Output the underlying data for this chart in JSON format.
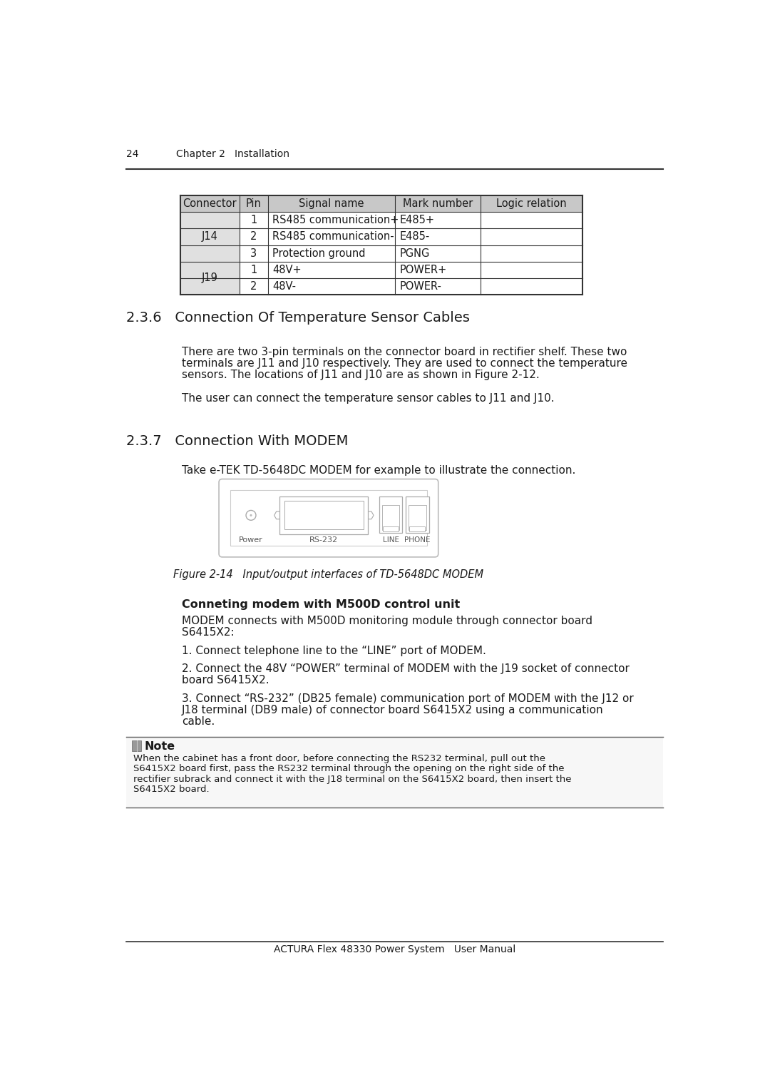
{
  "page_number": "24",
  "chapter_header": "Chapter 2   Installation",
  "footer_text": "ACTURA Flex 48330 Power System   User Manual",
  "table": {
    "headers": [
      "Connector",
      "Pin",
      "Signal name",
      "Mark number",
      "Logic relation"
    ],
    "rows": [
      [
        "",
        "1",
        "RS485 communication+",
        "E485+",
        ""
      ],
      [
        "J14",
        "2",
        "RS485 communication-",
        "E485-",
        ""
      ],
      [
        "",
        "3",
        "Protection ground",
        "PGNG",
        ""
      ],
      [
        "J19",
        "1",
        "48V+",
        "POWER+",
        ""
      ],
      [
        "",
        "2",
        "48V-",
        "POWER-",
        ""
      ]
    ]
  },
  "section_236": {
    "title": "2.3.6   Connection Of Temperature Sensor Cables",
    "para1_lines": [
      "There are two 3-pin terminals on the connector board in rectifier shelf. These two",
      "terminals are J11 and J10 respectively. They are used to connect the temperature",
      "sensors. The locations of J11 and J10 are as shown in Figure 2-12."
    ],
    "para2": "The user can connect the temperature sensor cables to J11 and J10."
  },
  "section_237": {
    "title": "2.3.7   Connection With MODEM",
    "intro": "Take e-TEK TD-5648DC MODEM for example to illustrate the connection.",
    "figure_caption": "Figure 2-14   Input/output interfaces of TD-5648DC MODEM",
    "subsection_title": "Conneting modem with M500D control unit",
    "para1_lines": [
      "MODEM connects with M500D monitoring module through connector board",
      "S6415X2:"
    ],
    "para2": "1. Connect telephone line to the “LINE” port of MODEM.",
    "para3_lines": [
      "2. Connect the 48V “POWER” terminal of MODEM with the J19 socket of connector",
      "board S6415X2."
    ],
    "para4_lines": [
      "3. Connect “RS-232” (DB25 female) communication port of MODEM with the J12 or",
      "J18 terminal (DB9 male) of connector board S6415X2 using a communication",
      "cable."
    ],
    "note_title": "Note",
    "note_lines": [
      "When the cabinet has a front door, before connecting the RS232 terminal, pull out the",
      "S6415X2 board first, pass the RS232 terminal through the opening on the right side of the",
      "rectifier subrack and connect it with the J18 terminal on the S6415X2 board, then insert the",
      "S6415X2 board."
    ]
  },
  "bg_color": "#ffffff",
  "header_bg": "#c8c8c8",
  "row_bg_connector": "#e0e0e0"
}
